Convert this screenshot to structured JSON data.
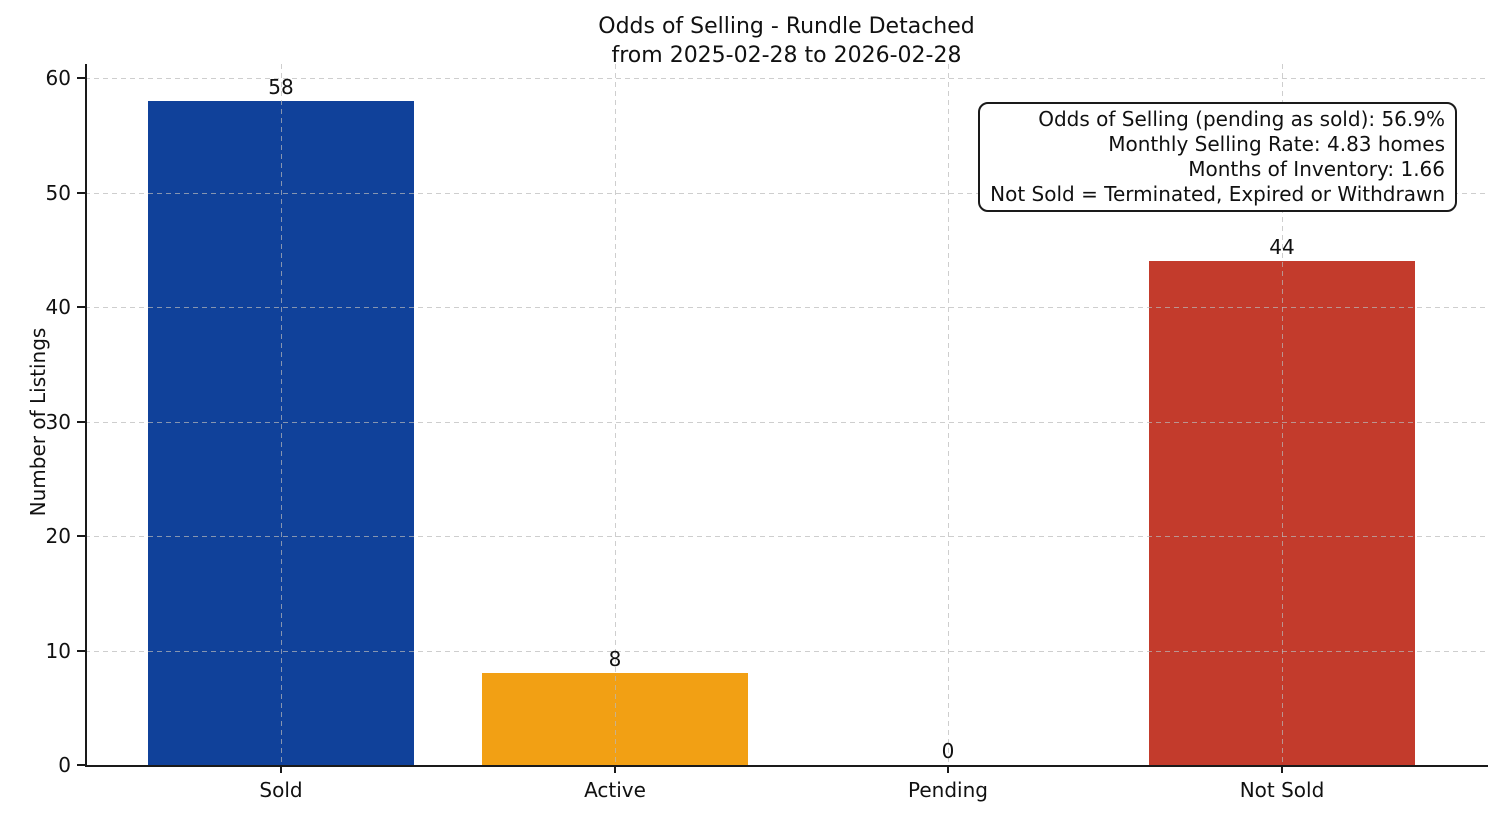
{
  "chart_data": {
    "type": "bar",
    "title": "Odds of Selling - Rundle Detached",
    "subtitle": "from 2025-02-28 to 2026-02-28",
    "ylabel": "Number of Listings",
    "xlabel": "",
    "categories": [
      "Sold",
      "Active",
      "Pending",
      "Not Sold"
    ],
    "values": [
      58,
      8,
      0,
      44
    ],
    "value_labels": [
      "58",
      "8",
      "0",
      "44"
    ],
    "bar_colors": [
      "#10419a",
      "#f2a014",
      null,
      "#c33b2c"
    ],
    "yticks": [
      0,
      10,
      20,
      30,
      40,
      50,
      60
    ],
    "ylim": [
      0,
      61.2
    ],
    "grid": "dashed light-gray gridlines on both axes",
    "legend_position": "none",
    "annotation_box": {
      "position": "top-right",
      "lines": [
        "Odds of Selling (pending as sold): 56.9%",
        "Monthly Selling Rate: 4.83 homes",
        "Months of Inventory: 1.66",
        "Not Sold = Terminated, Expired or Withdrawn"
      ]
    },
    "colors": {
      "sold_bar": "#10419a",
      "active_bar": "#f2a014",
      "not_sold_bar": "#c33b2c",
      "axis": "#1a1a1a",
      "text": "#111111",
      "gridline": "#c9c9c9",
      "background": "#ffffff"
    }
  }
}
